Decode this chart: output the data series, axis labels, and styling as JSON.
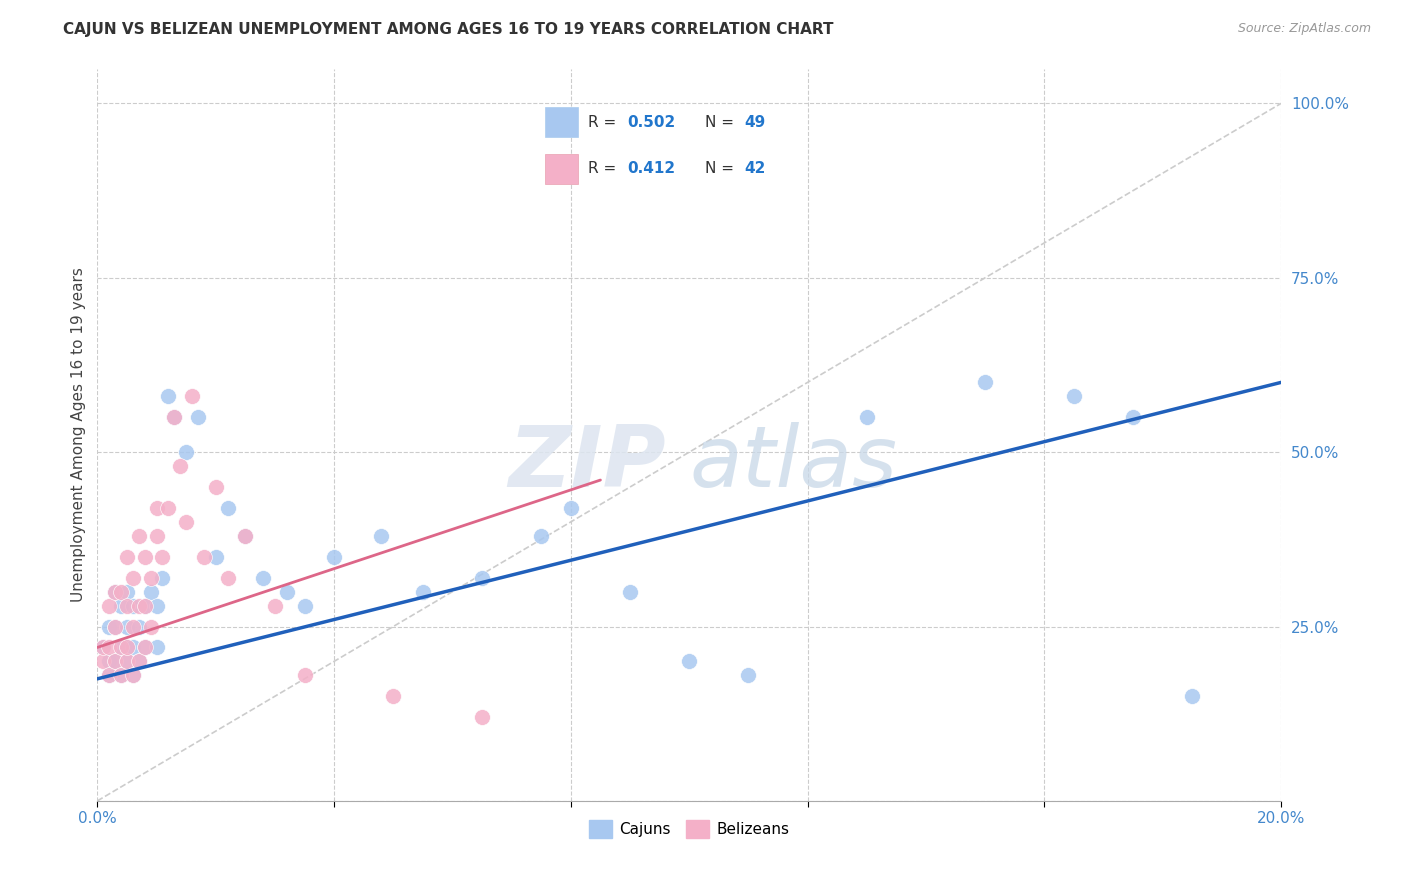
{
  "title": "CAJUN VS BELIZEAN UNEMPLOYMENT AMONG AGES 16 TO 19 YEARS CORRELATION CHART",
  "source": "Source: ZipAtlas.com",
  "ylabel": "Unemployment Among Ages 16 to 19 years",
  "xlim": [
    0.0,
    0.2
  ],
  "ylim": [
    0.0,
    1.05
  ],
  "xticks": [
    0.0,
    0.04,
    0.08,
    0.12,
    0.16,
    0.2
  ],
  "yticks": [
    0.0,
    0.25,
    0.5,
    0.75,
    1.0
  ],
  "xtick_labels": [
    "0.0%",
    "",
    "",
    "",
    "",
    "20.0%"
  ],
  "ytick_labels": [
    "",
    "25.0%",
    "50.0%",
    "75.0%",
    "100.0%"
  ],
  "cajun_R": 0.502,
  "cajun_N": 49,
  "belizean_R": 0.412,
  "belizean_N": 42,
  "cajun_color": "#a8c8f0",
  "belizean_color": "#f4b0c8",
  "cajun_line_color": "#2060bb",
  "belizean_line_color": "#dd6688",
  "diagonal_color": "#cccccc",
  "background_color": "#ffffff",
  "watermark_zip": "ZIP",
  "watermark_atlas": "atlas",
  "legend_label_cajun": "Cajuns",
  "legend_label_belizean": "Belizeans",
  "cajun_x": [
    0.001,
    0.002,
    0.002,
    0.002,
    0.003,
    0.003,
    0.003,
    0.004,
    0.004,
    0.004,
    0.005,
    0.005,
    0.005,
    0.005,
    0.006,
    0.006,
    0.006,
    0.007,
    0.007,
    0.008,
    0.008,
    0.009,
    0.01,
    0.01,
    0.011,
    0.012,
    0.013,
    0.015,
    0.017,
    0.02,
    0.022,
    0.025,
    0.028,
    0.032,
    0.035,
    0.04,
    0.048,
    0.055,
    0.065,
    0.075,
    0.08,
    0.09,
    0.1,
    0.11,
    0.13,
    0.15,
    0.165,
    0.175,
    0.185
  ],
  "cajun_y": [
    0.22,
    0.18,
    0.2,
    0.25,
    0.2,
    0.25,
    0.3,
    0.18,
    0.22,
    0.28,
    0.2,
    0.22,
    0.25,
    0.3,
    0.18,
    0.22,
    0.28,
    0.2,
    0.25,
    0.22,
    0.28,
    0.3,
    0.22,
    0.28,
    0.32,
    0.58,
    0.55,
    0.5,
    0.55,
    0.35,
    0.42,
    0.38,
    0.32,
    0.3,
    0.28,
    0.35,
    0.38,
    0.3,
    0.32,
    0.38,
    0.42,
    0.3,
    0.2,
    0.18,
    0.55,
    0.6,
    0.58,
    0.55,
    0.15
  ],
  "belizean_x": [
    0.001,
    0.001,
    0.002,
    0.002,
    0.002,
    0.003,
    0.003,
    0.003,
    0.004,
    0.004,
    0.004,
    0.005,
    0.005,
    0.005,
    0.005,
    0.006,
    0.006,
    0.006,
    0.007,
    0.007,
    0.007,
    0.008,
    0.008,
    0.008,
    0.009,
    0.009,
    0.01,
    0.01,
    0.011,
    0.012,
    0.013,
    0.014,
    0.015,
    0.016,
    0.018,
    0.02,
    0.022,
    0.025,
    0.03,
    0.035,
    0.05,
    0.065
  ],
  "belizean_y": [
    0.2,
    0.22,
    0.18,
    0.22,
    0.28,
    0.2,
    0.25,
    0.3,
    0.18,
    0.22,
    0.3,
    0.2,
    0.22,
    0.28,
    0.35,
    0.18,
    0.25,
    0.32,
    0.2,
    0.28,
    0.38,
    0.22,
    0.28,
    0.35,
    0.25,
    0.32,
    0.38,
    0.42,
    0.35,
    0.42,
    0.55,
    0.48,
    0.4,
    0.58,
    0.35,
    0.45,
    0.32,
    0.38,
    0.28,
    0.18,
    0.15,
    0.12
  ],
  "cajun_line_x": [
    0.0,
    0.2
  ],
  "cajun_line_y": [
    0.175,
    0.6
  ],
  "belizean_line_x": [
    0.0,
    0.085
  ],
  "belizean_line_y": [
    0.22,
    0.46
  ]
}
